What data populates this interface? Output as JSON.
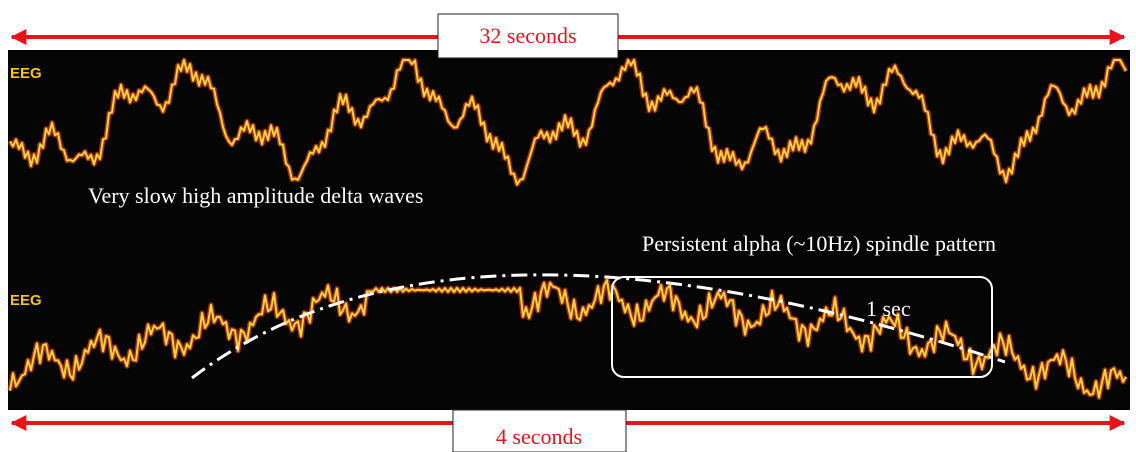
{
  "top_span": "32 seconds",
  "bottom_span": "4 seconds",
  "traces": [
    {
      "label": "EEG"
    },
    {
      "label": "EEG"
    }
  ],
  "annotations": {
    "delta": "Very slow high amplitude delta waves",
    "alpha": "Persistent alpha (~10Hz) spindle pattern",
    "window": "1 sec"
  }
}
